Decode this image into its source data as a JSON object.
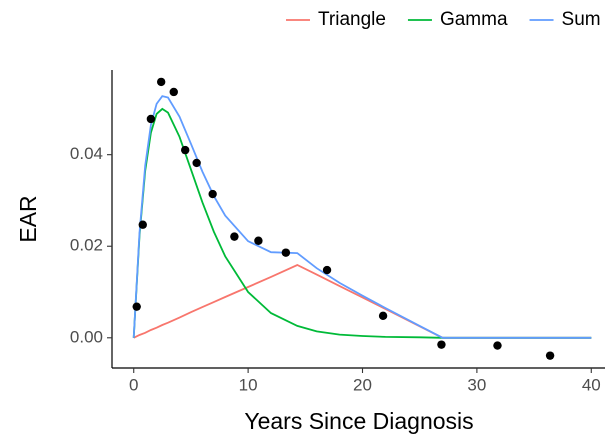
{
  "chart_data": {
    "type": "line",
    "x_label": "Years Since Diagnosis",
    "y_label": "EAR",
    "x": [
      0,
      0.5,
      1,
      1.5,
      2,
      2.5,
      3,
      4,
      5,
      6,
      7,
      8,
      10,
      12,
      14.3,
      16,
      18,
      20,
      22,
      25,
      27,
      30,
      35,
      40
    ],
    "series": [
      {
        "name": "Triangle",
        "color": "#F8766D",
        "values": [
          0,
          0.0006,
          0.0011,
          0.0017,
          0.0022,
          0.0028,
          0.0033,
          0.0044,
          0.0056,
          0.0067,
          0.0078,
          0.0089,
          0.0111,
          0.0133,
          0.0159,
          0.0138,
          0.0113,
          0.0088,
          0.0063,
          0.0025,
          0,
          0,
          0,
          0
        ]
      },
      {
        "name": "Gamma",
        "color": "#00BA38",
        "values": [
          0,
          0.0223,
          0.0365,
          0.0448,
          0.0489,
          0.05,
          0.0492,
          0.0439,
          0.0368,
          0.0296,
          0.0232,
          0.0178,
          0.01,
          0.0054,
          0.0026,
          0.0014,
          0.0007,
          0.0004,
          0.0002,
          0.0001,
          0,
          0,
          0,
          0
        ]
      },
      {
        "name": "Sum",
        "color": "#619CFF",
        "values": [
          0,
          0.0229,
          0.0376,
          0.0465,
          0.0511,
          0.0528,
          0.0525,
          0.0483,
          0.0424,
          0.0363,
          0.031,
          0.0267,
          0.0211,
          0.0187,
          0.0185,
          0.0152,
          0.012,
          0.0092,
          0.0065,
          0.0026,
          0,
          0,
          0,
          0
        ]
      }
    ],
    "points": {
      "color": "#000000",
      "x": [
        0.26,
        0.79,
        1.5,
        2.4,
        3.5,
        4.5,
        5.5,
        6.9,
        8.8,
        10.9,
        13.3,
        16.9,
        21.8,
        26.9,
        31.8,
        36.4
      ],
      "y": [
        0.0068,
        0.0247,
        0.0478,
        0.0559,
        0.0537,
        0.041,
        0.0382,
        0.0314,
        0.0221,
        0.0212,
        0.0186,
        0.0148,
        0.0048,
        -0.0015,
        -0.0017,
        -0.0039
      ]
    },
    "xlim": [
      -1.9,
      41.2
    ],
    "ylim": [
      -0.0066,
      0.0585
    ],
    "xticks": [
      0,
      10,
      20,
      30,
      40
    ],
    "yticks": [
      {
        "value": 0,
        "label": "0.00"
      },
      {
        "value": 0.02,
        "label": "0.02"
      },
      {
        "value": 0.04,
        "label": "0.04"
      }
    ],
    "legend": "top"
  }
}
